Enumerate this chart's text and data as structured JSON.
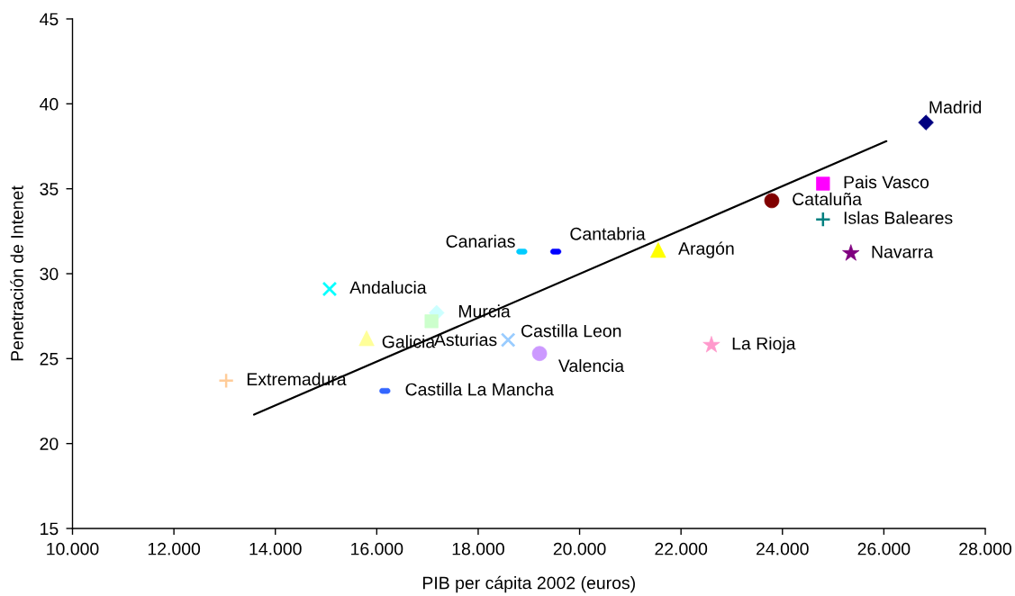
{
  "chart_data": {
    "type": "scatter",
    "xlabel": "PIB per cápita 2002 (euros)",
    "ylabel": "Penetración de Intenet",
    "xlim": [
      10000,
      28000
    ],
    "xticks": [
      {
        "value": 10000,
        "label": "10.000"
      },
      {
        "value": 12000,
        "label": "12.000"
      },
      {
        "value": 14000,
        "label": "14.000"
      },
      {
        "value": 16000,
        "label": "16.000"
      },
      {
        "value": 18000,
        "label": "18.000"
      },
      {
        "value": 20000,
        "label": "20.000"
      },
      {
        "value": 22000,
        "label": "22.000"
      },
      {
        "value": 24000,
        "label": "24.000"
      },
      {
        "value": 26000,
        "label": "26.000"
      },
      {
        "value": 28000,
        "label": "28.000"
      }
    ],
    "ylim": [
      15,
      45
    ],
    "yticks": [
      15,
      20,
      25,
      30,
      35,
      40,
      45
    ],
    "series": [
      {
        "name": "Madrid",
        "color": "#000080",
        "marker": "diamond",
        "x": [
          26830
        ],
        "values": [
          38.9
        ]
      },
      {
        "name": "Pais Vasco",
        "color": "#ff00ff",
        "marker": "square",
        "x": [
          24800
        ],
        "values": [
          35.3
        ]
      },
      {
        "name": "Aragón",
        "color": "#ffff00",
        "marker": "triangle",
        "x": [
          21550
        ],
        "values": [
          31.4
        ]
      },
      {
        "name": "Andalucia",
        "color": "#00ffff",
        "marker": "cross",
        "x": [
          15070
        ],
        "values": [
          29.1
        ]
      },
      {
        "name": "Navarra",
        "color": "#800080",
        "marker": "star",
        "x": [
          25350
        ],
        "values": [
          31.2
        ]
      },
      {
        "name": "Cataluña",
        "color": "#800000",
        "marker": "circle",
        "x": [
          23790
        ],
        "values": [
          34.3
        ]
      },
      {
        "name": "Islas Baleares",
        "color": "#008080",
        "marker": "plus",
        "x": [
          24800
        ],
        "values": [
          33.2
        ]
      },
      {
        "name": "Cantabria",
        "color": "#0000ff",
        "x": [
          19530
        ],
        "values": [
          31.3
        ]
      },
      {
        "name": "Canarias",
        "color": "#00ccff",
        "x": [
          18860
        ],
        "values": [
          31.3
        ]
      },
      {
        "name": "Murcia",
        "color": "#ccffff",
        "marker": "diamond",
        "x": [
          17180
        ],
        "values": [
          27.7
        ]
      },
      {
        "name": "Asturias",
        "color": "#ccffcc",
        "marker": "square",
        "x": [
          17080
        ],
        "values": [
          27.2
        ]
      },
      {
        "name": "Galicia",
        "color": "#ffff99",
        "marker": "triangle",
        "x": [
          15800
        ],
        "values": [
          26.2
        ]
      },
      {
        "name": "Castilla Leon",
        "color": "#99ccff",
        "marker": "cross",
        "x": [
          18590
        ],
        "values": [
          26.1
        ]
      },
      {
        "name": "La Rioja",
        "color": "#ff99cc",
        "marker": "star",
        "x": [
          22600
        ],
        "values": [
          25.8
        ]
      },
      {
        "name": "Valencia",
        "color": "#cc99ff",
        "marker": "circle",
        "x": [
          19210
        ],
        "values": [
          25.3
        ]
      },
      {
        "name": "Extremadura",
        "color": "#ffcc99",
        "marker": "plus",
        "x": [
          13030
        ],
        "values": [
          23.7
        ]
      },
      {
        "name": "Castilla La Mancha",
        "color": "#3366ff",
        "x": [
          16160
        ],
        "values": [
          23.1
        ]
      },
      {
        "type": "line",
        "color": "#000000",
        "marker": "none",
        "line_style": "solid",
        "x": [
          13580,
          26050
        ],
        "values": [
          21.7,
          37.8
        ]
      }
    ]
  }
}
